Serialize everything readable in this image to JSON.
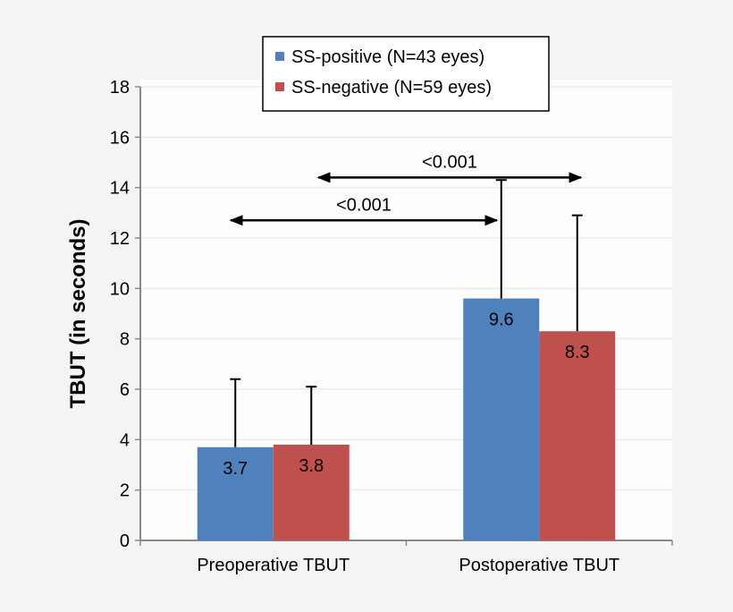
{
  "chart_data": {
    "type": "bar",
    "title": "",
    "xlabel": "",
    "ylabel": "TBUT (in seconds)",
    "ylim": [
      0,
      18
    ],
    "yticks": [
      0,
      2,
      4,
      6,
      8,
      10,
      12,
      14,
      16,
      18
    ],
    "grid": true,
    "legend_placement": "top-center",
    "categories": [
      "Preoperative TBUT",
      "Postoperative TBUT"
    ],
    "series": [
      {
        "name": "SS-positive (N=43 eyes)",
        "color": "#4f81bd",
        "values": [
          3.7,
          9.6
        ],
        "error_upper": [
          6.4,
          14.3
        ]
      },
      {
        "name": "SS-negative (N=59 eyes)",
        "color": "#c0504d",
        "values": [
          3.8,
          8.3
        ],
        "error_upper": [
          6.1,
          12.9
        ]
      }
    ],
    "annotations": [
      {
        "label": "<0.001",
        "from": "Preoperative TBUT / SS-positive",
        "to": "Postoperative TBUT / SS-positive",
        "y": 12.7
      },
      {
        "label": "<0.001",
        "from": "Preoperative TBUT / SS-negative",
        "to": "Postoperative TBUT / SS-negative",
        "y": 14.4
      }
    ]
  }
}
